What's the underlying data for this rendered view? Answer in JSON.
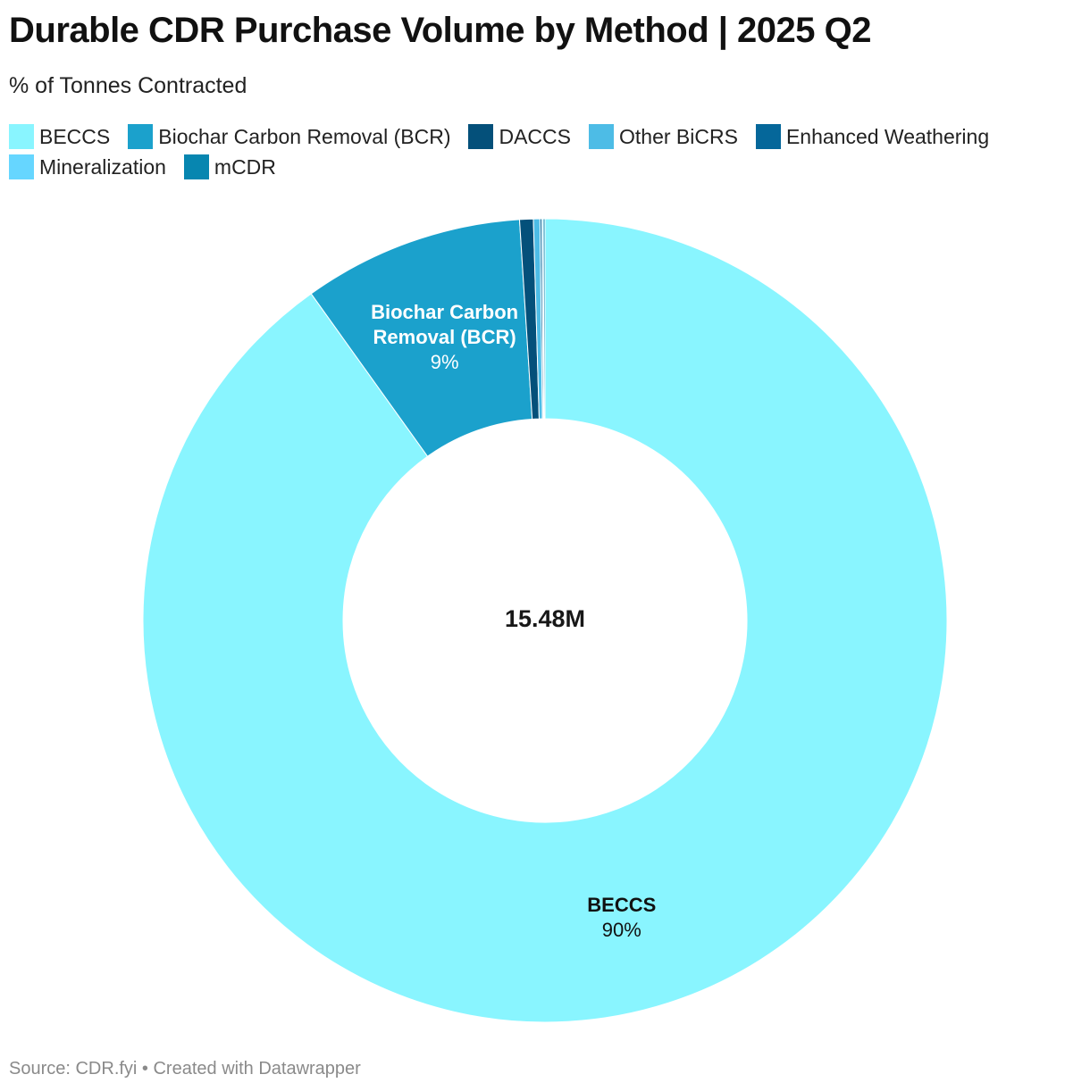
{
  "header": {
    "title": "Durable CDR Purchase Volume by Method | 2025 Q2",
    "subtitle": "% of Tonnes Contracted"
  },
  "chart_data": {
    "type": "pie",
    "variant": "donut",
    "unit": "% of tonnes contracted",
    "total_label": "15.48M",
    "legend_position": "top",
    "slices": [
      {
        "name": "BECCS",
        "value": 90.12,
        "color": "#89f5ff",
        "label_lines": [
          "BECCS"
        ],
        "pct_label": "90%",
        "label_color": "#111111"
      },
      {
        "name": "Biochar Carbon Removal (BCR)",
        "value": 8.87,
        "color": "#1ba1cc",
        "label_lines": [
          "Biochar Carbon",
          "Removal (BCR)"
        ],
        "pct_label": "9%",
        "label_color": "#ffffff"
      },
      {
        "name": "DACCS",
        "value": 0.55,
        "color": "#04507a"
      },
      {
        "name": "Other BiCRS",
        "value": 0.26,
        "color": "#4dbce6"
      },
      {
        "name": "Enhanced Weathering",
        "value": 0.08,
        "color": "#05679a"
      },
      {
        "name": "Mineralization",
        "value": 0.05,
        "color": "#66d6ff"
      },
      {
        "name": "mCDR",
        "value": 0.07,
        "color": "#0786b0"
      }
    ]
  },
  "footer": {
    "source": "Source: CDR.fyi • Created with Datawrapper"
  }
}
